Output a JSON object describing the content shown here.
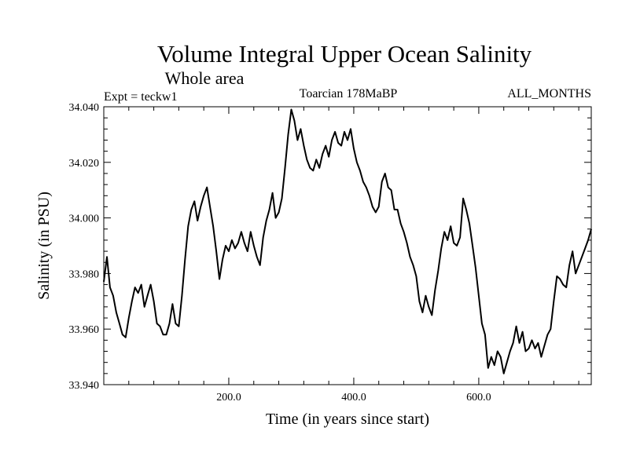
{
  "chart_data": {
    "type": "line",
    "title": "Volume Integral Upper Ocean Salinity",
    "subtitle": "Whole area",
    "experiment": "Expt = teckw1",
    "period": "Toarcian 178MaBP",
    "months": "ALL_MONTHS",
    "xlabel": "Time (in years since start)",
    "ylabel": "Salinity (in PSU)",
    "xlim": [
      0,
      780
    ],
    "ylim": [
      33.94,
      34.04
    ],
    "x_ticks": [
      200,
      400,
      600
    ],
    "x_tick_labels": [
      "200.0",
      "400.0",
      "600.0"
    ],
    "y_ticks": [
      33.94,
      33.96,
      33.98,
      34.0,
      34.02,
      34.04
    ],
    "y_tick_labels": [
      "33.940",
      "33.960",
      "33.980",
      "34.000",
      "34.020",
      "34.040"
    ],
    "grid": false,
    "series": [
      {
        "name": "salinity",
        "x": [
          0,
          5,
          10,
          15,
          20,
          25,
          30,
          35,
          40,
          45,
          50,
          55,
          60,
          65,
          70,
          75,
          80,
          85,
          90,
          95,
          100,
          105,
          110,
          115,
          120,
          125,
          130,
          135,
          140,
          145,
          150,
          155,
          160,
          165,
          170,
          175,
          180,
          185,
          190,
          195,
          200,
          205,
          210,
          215,
          220,
          225,
          230,
          235,
          240,
          245,
          250,
          255,
          260,
          265,
          270,
          275,
          280,
          285,
          290,
          295,
          300,
          305,
          310,
          315,
          320,
          325,
          330,
          335,
          340,
          345,
          350,
          355,
          360,
          365,
          370,
          375,
          380,
          385,
          390,
          395,
          400,
          405,
          410,
          415,
          420,
          425,
          430,
          435,
          440,
          445,
          450,
          455,
          460,
          465,
          470,
          475,
          480,
          485,
          490,
          495,
          500,
          505,
          510,
          515,
          520,
          525,
          530,
          535,
          540,
          545,
          550,
          555,
          560,
          565,
          570,
          575,
          580,
          585,
          590,
          595,
          600,
          605,
          610,
          615,
          620,
          625,
          630,
          635,
          640,
          645,
          650,
          655,
          660,
          665,
          670,
          675,
          680,
          685,
          690,
          695,
          700,
          705,
          710,
          715,
          720,
          725,
          730,
          735,
          740,
          745,
          750,
          755,
          760,
          765,
          770,
          775,
          780
        ],
        "values": [
          33.977,
          33.986,
          33.975,
          33.972,
          33.966,
          33.962,
          33.958,
          33.957,
          33.964,
          33.97,
          33.975,
          33.973,
          33.976,
          33.968,
          33.972,
          33.976,
          33.97,
          33.962,
          33.961,
          33.958,
          33.958,
          33.962,
          33.969,
          33.962,
          33.961,
          33.972,
          33.985,
          33.997,
          34.003,
          34.006,
          33.999,
          34.004,
          34.008,
          34.011,
          34.004,
          33.997,
          33.988,
          33.978,
          33.985,
          33.99,
          33.988,
          33.992,
          33.989,
          33.991,
          33.995,
          33.991,
          33.988,
          33.995,
          33.99,
          33.986,
          33.983,
          33.993,
          33.999,
          34.003,
          34.009,
          34.0,
          34.002,
          34.007,
          34.018,
          34.03,
          34.039,
          34.035,
          34.028,
          34.032,
          34.026,
          34.021,
          34.018,
          34.017,
          34.021,
          34.018,
          34.023,
          34.026,
          34.022,
          34.028,
          34.031,
          34.027,
          34.026,
          34.031,
          34.028,
          34.032,
          34.025,
          34.02,
          34.017,
          34.013,
          34.011,
          34.008,
          34.004,
          34.002,
          34.004,
          34.013,
          34.016,
          34.011,
          34.01,
          34.003,
          34.003,
          33.998,
          33.995,
          33.991,
          33.986,
          33.983,
          33.979,
          33.97,
          33.966,
          33.972,
          33.968,
          33.965,
          33.974,
          33.981,
          33.989,
          33.995,
          33.992,
          33.997,
          33.991,
          33.99,
          33.993,
          34.007,
          34.003,
          33.998,
          33.99,
          33.982,
          33.972,
          33.962,
          33.958,
          33.946,
          33.95,
          33.947,
          33.952,
          33.95,
          33.944,
          33.948,
          33.952,
          33.955,
          33.961,
          33.955,
          33.959,
          33.952,
          33.953,
          33.956,
          33.953,
          33.955,
          33.95,
          33.954,
          33.958,
          33.96,
          33.97,
          33.979,
          33.978,
          33.976,
          33.975,
          33.983,
          33.988,
          33.98,
          33.983,
          33.986,
          33.989,
          33.992,
          33.996
        ]
      }
    ]
  }
}
